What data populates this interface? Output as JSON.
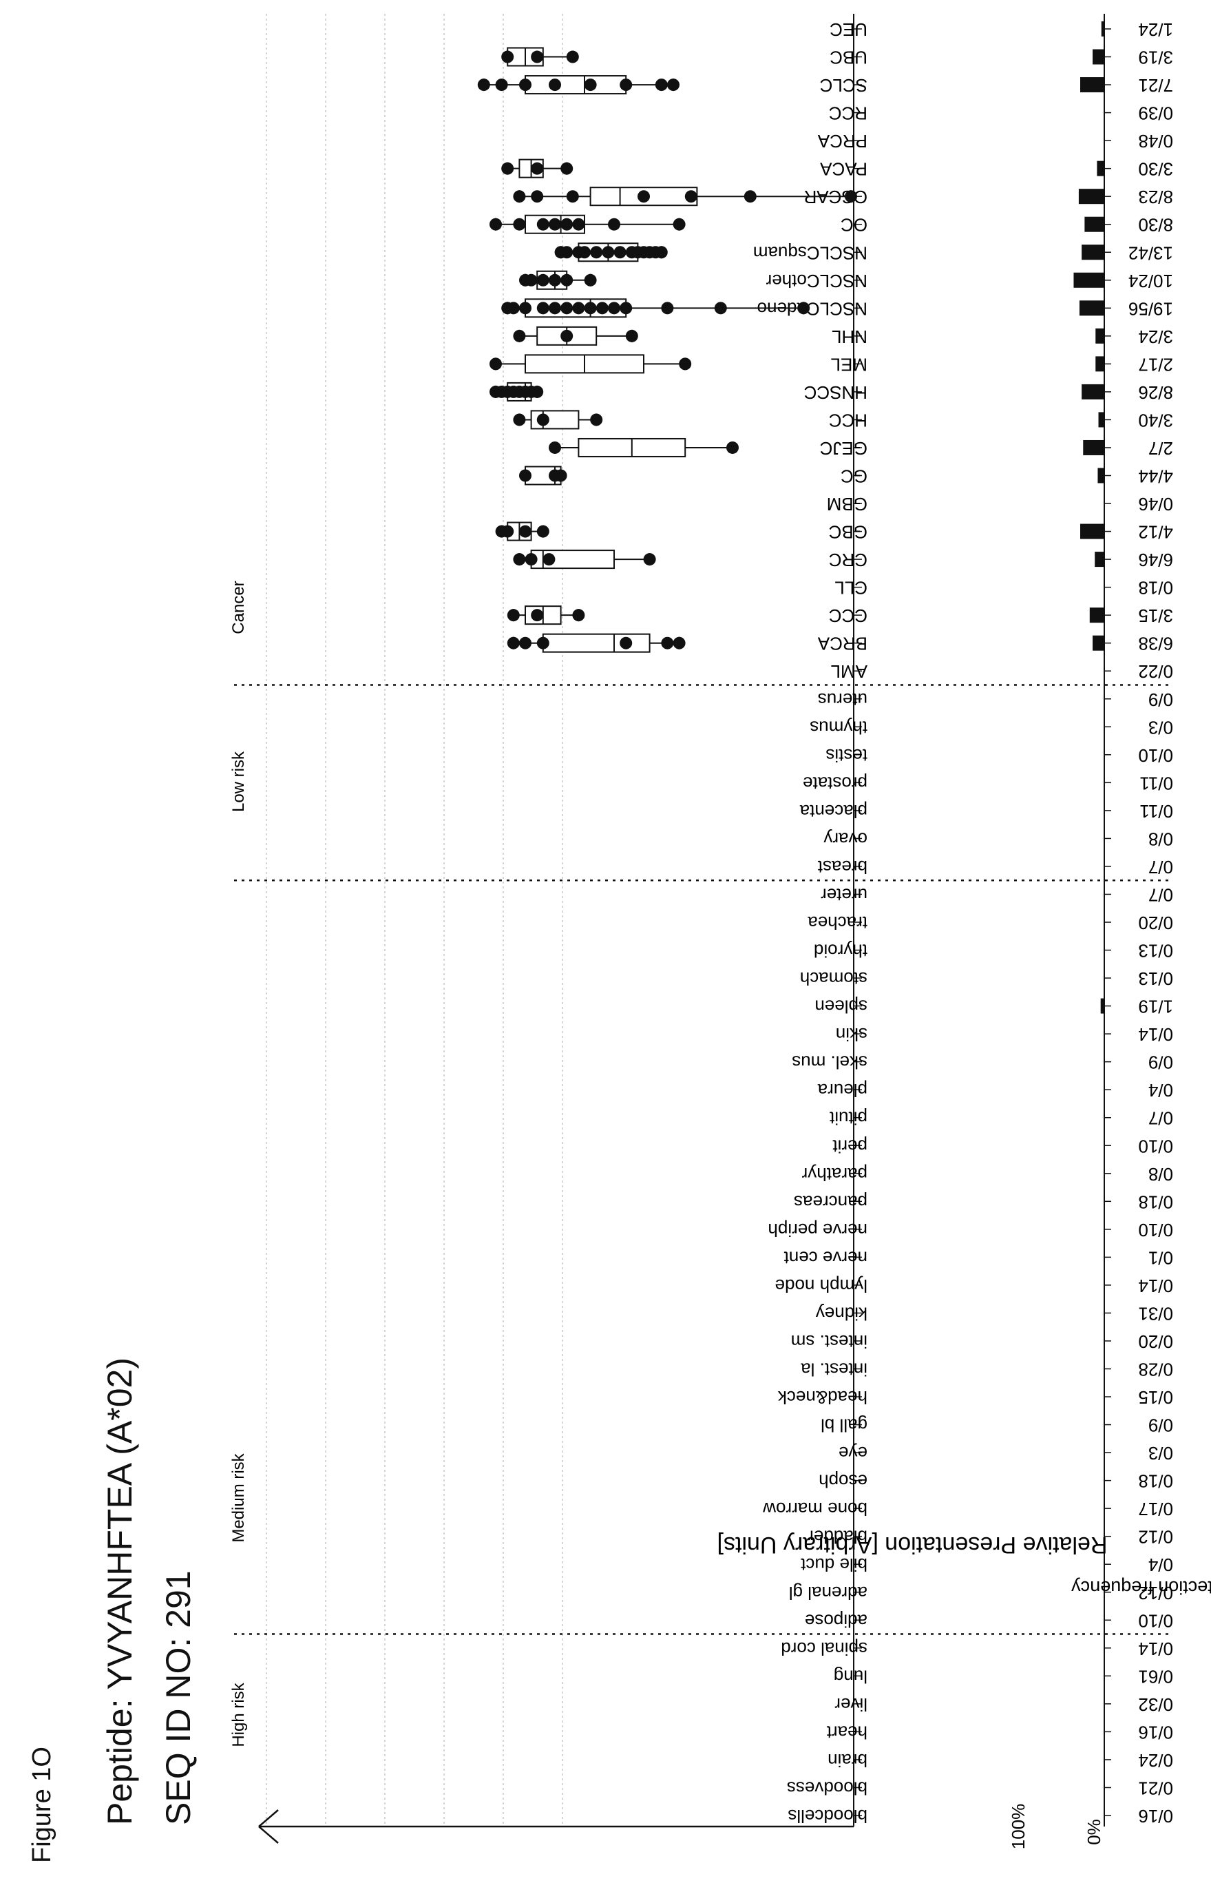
{
  "figure_label": "Figure 1O",
  "peptide_title": "Peptide: YVYANHFTEA (A*02)",
  "seq_title": "SEQ ID NO: 291",
  "chart_data": {
    "type": "boxplot+bar",
    "ylabel": "Relative Presentation [Arbitrary Units]",
    "freq_label": "detection frequency",
    "freq_ticks": [
      "0%",
      "100%"
    ],
    "groups": [
      "High risk",
      "Medium risk",
      "Low risk",
      "Cancer"
    ],
    "grid": true,
    "categories": [
      {
        "name": "bloodcells",
        "freq": "0/16",
        "group": "High risk",
        "frac": 0
      },
      {
        "name": "bloodvess",
        "freq": "0/21",
        "group": "High risk",
        "frac": 0
      },
      {
        "name": "brain",
        "freq": "0/24",
        "group": "High risk",
        "frac": 0
      },
      {
        "name": "heart",
        "freq": "0/16",
        "group": "High risk",
        "frac": 0
      },
      {
        "name": "liver",
        "freq": "0/32",
        "group": "High risk",
        "frac": 0
      },
      {
        "name": "lung",
        "freq": "0/61",
        "group": "High risk",
        "frac": 0
      },
      {
        "name": "spinal cord",
        "freq": "0/14",
        "group": "High risk",
        "frac": 0
      },
      {
        "name": "adipose",
        "freq": "0/10",
        "group": "Medium risk",
        "frac": 0
      },
      {
        "name": "adrenal gl",
        "freq": "0/12",
        "group": "Medium risk",
        "frac": 0
      },
      {
        "name": "bile duct",
        "freq": "0/4",
        "group": "Medium risk",
        "frac": 0
      },
      {
        "name": "bladder",
        "freq": "0/12",
        "group": "Medium risk",
        "frac": 0
      },
      {
        "name": "bone marrow",
        "freq": "0/17",
        "group": "Medium risk",
        "frac": 0
      },
      {
        "name": "esoph",
        "freq": "0/18",
        "group": "Medium risk",
        "frac": 0
      },
      {
        "name": "eye",
        "freq": "0/3",
        "group": "Medium risk",
        "frac": 0
      },
      {
        "name": "gall bl",
        "freq": "0/9",
        "group": "Medium risk",
        "frac": 0
      },
      {
        "name": "head&neck",
        "freq": "0/15",
        "group": "Medium risk",
        "frac": 0
      },
      {
        "name": "intest. la",
        "freq": "0/28",
        "group": "Medium risk",
        "frac": 0
      },
      {
        "name": "intest. sm",
        "freq": "0/20",
        "group": "Medium risk",
        "frac": 0
      },
      {
        "name": "kidney",
        "freq": "0/31",
        "group": "Medium risk",
        "frac": 0
      },
      {
        "name": "lymph node",
        "freq": "0/14",
        "group": "Medium risk",
        "frac": 0
      },
      {
        "name": "nerve cent",
        "freq": "0/1",
        "group": "Medium risk",
        "frac": 0
      },
      {
        "name": "nerve periph",
        "freq": "0/10",
        "group": "Medium risk",
        "frac": 0
      },
      {
        "name": "pancreas",
        "freq": "0/18",
        "group": "Medium risk",
        "frac": 0
      },
      {
        "name": "parathyr",
        "freq": "0/8",
        "group": "Medium risk",
        "frac": 0
      },
      {
        "name": "perit",
        "freq": "0/10",
        "group": "Medium risk",
        "frac": 0
      },
      {
        "name": "pituit",
        "freq": "0/7",
        "group": "Medium risk",
        "frac": 0
      },
      {
        "name": "pleura",
        "freq": "0/4",
        "group": "Medium risk",
        "frac": 0
      },
      {
        "name": "skel. mus",
        "freq": "0/9",
        "group": "Medium risk",
        "frac": 0
      },
      {
        "name": "skin",
        "freq": "0/14",
        "group": "Medium risk",
        "frac": 0
      },
      {
        "name": "spleen",
        "freq": "1/19",
        "group": "Medium risk",
        "frac": 0.05
      },
      {
        "name": "stomach",
        "freq": "0/13",
        "group": "Medium risk",
        "frac": 0
      },
      {
        "name": "thyroid",
        "freq": "0/13",
        "group": "Medium risk",
        "frac": 0
      },
      {
        "name": "trachea",
        "freq": "0/20",
        "group": "Medium risk",
        "frac": 0
      },
      {
        "name": "ureter",
        "freq": "0/7",
        "group": "Medium risk",
        "frac": 0
      },
      {
        "name": "breast",
        "freq": "0/7",
        "group": "Low risk",
        "frac": 0
      },
      {
        "name": "ovary",
        "freq": "0/8",
        "group": "Low risk",
        "frac": 0
      },
      {
        "name": "placenta",
        "freq": "0/11",
        "group": "Low risk",
        "frac": 0
      },
      {
        "name": "prostate",
        "freq": "0/11",
        "group": "Low risk",
        "frac": 0
      },
      {
        "name": "testis",
        "freq": "0/10",
        "group": "Low risk",
        "frac": 0
      },
      {
        "name": "thymus",
        "freq": "0/3",
        "group": "Low risk",
        "frac": 0
      },
      {
        "name": "uterus",
        "freq": "0/9",
        "group": "Low risk",
        "frac": 0
      },
      {
        "name": "AML",
        "freq": "0/22",
        "group": "Cancer",
        "frac": 0
      },
      {
        "name": "BRCA",
        "freq": "6/38",
        "group": "Cancer",
        "frac": 0.16,
        "box": {
          "min": 0.29,
          "q1": 0.34,
          "med": 0.4,
          "q3": 0.52,
          "max": 0.57
        },
        "pts": [
          0.29,
          0.31,
          0.38,
          0.52,
          0.55,
          0.57
        ]
      },
      {
        "name": "CCC",
        "freq": "3/15",
        "group": "Cancer",
        "frac": 0.2,
        "box": {
          "min": 0.46,
          "q1": 0.49,
          "med": 0.52,
          "q3": 0.55,
          "max": 0.57
        },
        "pts": [
          0.46,
          0.53,
          0.57
        ]
      },
      {
        "name": "CLL",
        "freq": "0/18",
        "group": "Cancer",
        "frac": 0
      },
      {
        "name": "CRC",
        "freq": "6/46",
        "group": "Cancer",
        "frac": 0.13,
        "box": {
          "min": 0.34,
          "q1": 0.4,
          "med": 0.52,
          "q3": 0.54,
          "max": 0.56
        },
        "pts": [
          0.34,
          0.51,
          0.54,
          0.56
        ]
      },
      {
        "name": "GBC",
        "freq": "4/12",
        "group": "Cancer",
        "frac": 0.33,
        "box": {
          "min": 0.52,
          "q1": 0.54,
          "med": 0.56,
          "q3": 0.58,
          "max": 0.59
        },
        "pts": [
          0.52,
          0.55,
          0.58,
          0.59
        ]
      },
      {
        "name": "GBM",
        "freq": "0/46",
        "group": "Cancer",
        "frac": 0
      },
      {
        "name": "GC",
        "freq": "4/44",
        "group": "Cancer",
        "frac": 0.09,
        "box": {
          "min": 0.49,
          "q1": 0.49,
          "med": 0.5,
          "q3": 0.55,
          "max": 0.55
        },
        "pts": [
          0.49,
          0.5,
          0.55
        ]
      },
      {
        "name": "GEJC",
        "freq": "2/7",
        "group": "Cancer",
        "frac": 0.29,
        "box": {
          "min": 0.2,
          "q1": 0.28,
          "med": 0.37,
          "q3": 0.46,
          "max": 0.5
        },
        "pts": [
          0.2,
          0.5
        ]
      },
      {
        "name": "HCC",
        "freq": "3/40",
        "group": "Cancer",
        "frac": 0.08,
        "box": {
          "min": 0.43,
          "q1": 0.46,
          "med": 0.52,
          "q3": 0.54,
          "max": 0.56
        },
        "pts": [
          0.43,
          0.52,
          0.56
        ]
      },
      {
        "name": "HNSCC",
        "freq": "8/26",
        "group": "Cancer",
        "frac": 0.31,
        "box": {
          "min": 0.53,
          "q1": 0.54,
          "med": 0.55,
          "q3": 0.58,
          "max": 0.6
        },
        "pts": [
          0.53,
          0.54,
          0.55,
          0.56,
          0.57,
          0.58,
          0.59,
          0.6
        ]
      },
      {
        "name": "MEL",
        "freq": "2/17",
        "group": "Cancer",
        "frac": 0.12,
        "box": {
          "min": 0.28,
          "q1": 0.35,
          "med": 0.45,
          "q3": 0.55,
          "max": 0.6
        },
        "pts": [
          0.28,
          0.6
        ]
      },
      {
        "name": "NHL",
        "freq": "3/24",
        "group": "Cancer",
        "frac": 0.12,
        "box": {
          "min": 0.37,
          "q1": 0.43,
          "med": 0.48,
          "q3": 0.53,
          "max": 0.56
        },
        "pts": [
          0.37,
          0.48,
          0.56
        ]
      },
      {
        "name": "NSCLCadeno",
        "freq": "19/56",
        "group": "Cancer",
        "frac": 0.34,
        "box": {
          "min": 0.08,
          "q1": 0.38,
          "med": 0.44,
          "q3": 0.55,
          "max": 0.58
        },
        "pts": [
          0.08,
          0.22,
          0.31,
          0.38,
          0.4,
          0.42,
          0.44,
          0.46,
          0.48,
          0.5,
          0.52,
          0.55,
          0.57,
          0.58
        ]
      },
      {
        "name": "NSCLCother",
        "freq": "10/24",
        "group": "Cancer",
        "frac": 0.42,
        "box": {
          "min": 0.44,
          "q1": 0.48,
          "med": 0.5,
          "q3": 0.53,
          "max": 0.55
        },
        "pts": [
          0.44,
          0.48,
          0.5,
          0.52,
          0.54,
          0.55
        ]
      },
      {
        "name": "NSCLCsquam",
        "freq": "13/42",
        "group": "Cancer",
        "frac": 0.31,
        "box": {
          "min": 0.32,
          "q1": 0.36,
          "med": 0.41,
          "q3": 0.46,
          "max": 0.49
        },
        "pts": [
          0.32,
          0.33,
          0.34,
          0.35,
          0.36,
          0.37,
          0.39,
          0.41,
          0.43,
          0.45,
          0.46,
          0.48,
          0.49
        ]
      },
      {
        "name": "OC",
        "freq": "8/30",
        "group": "Cancer",
        "frac": 0.27,
        "box": {
          "min": 0.29,
          "q1": 0.45,
          "med": 0.49,
          "q3": 0.55,
          "max": 0.6
        },
        "pts": [
          0.29,
          0.4,
          0.46,
          0.48,
          0.5,
          0.52,
          0.56,
          0.6
        ]
      },
      {
        "name": "OSCAR",
        "freq": "8/23",
        "group": "Cancer",
        "frac": 0.35,
        "box": {
          "min": 0.0,
          "q1": 0.26,
          "med": 0.39,
          "q3": 0.44,
          "max": 0.56
        },
        "pts": [
          0.0,
          0.17,
          0.27,
          0.35,
          0.47,
          0.53,
          0.56
        ]
      },
      {
        "name": "PACA",
        "freq": "3/30",
        "group": "Cancer",
        "frac": 0.1,
        "box": {
          "min": 0.48,
          "q1": 0.52,
          "med": 0.54,
          "q3": 0.56,
          "max": 0.58
        },
        "pts": [
          0.48,
          0.53,
          0.58
        ]
      },
      {
        "name": "PRCA",
        "freq": "0/48",
        "group": "Cancer",
        "frac": 0
      },
      {
        "name": "RCC",
        "freq": "0/39",
        "group": "Cancer",
        "frac": 0
      },
      {
        "name": "SCLC",
        "freq": "7/21",
        "group": "Cancer",
        "frac": 0.33,
        "box": {
          "min": 0.3,
          "q1": 0.38,
          "med": 0.45,
          "q3": 0.55,
          "max": 0.62
        },
        "pts": [
          0.3,
          0.32,
          0.38,
          0.44,
          0.5,
          0.55,
          0.59,
          0.62
        ]
      },
      {
        "name": "UBC",
        "freq": "3/19",
        "group": "Cancer",
        "frac": 0.16,
        "box": {
          "min": 0.47,
          "q1": 0.52,
          "med": 0.55,
          "q3": 0.58,
          "max": 0.58
        },
        "pts": [
          0.47,
          0.53,
          0.58
        ]
      },
      {
        "name": "UEC",
        "freq": "1/24",
        "group": "Cancer",
        "frac": 0.04
      }
    ]
  }
}
